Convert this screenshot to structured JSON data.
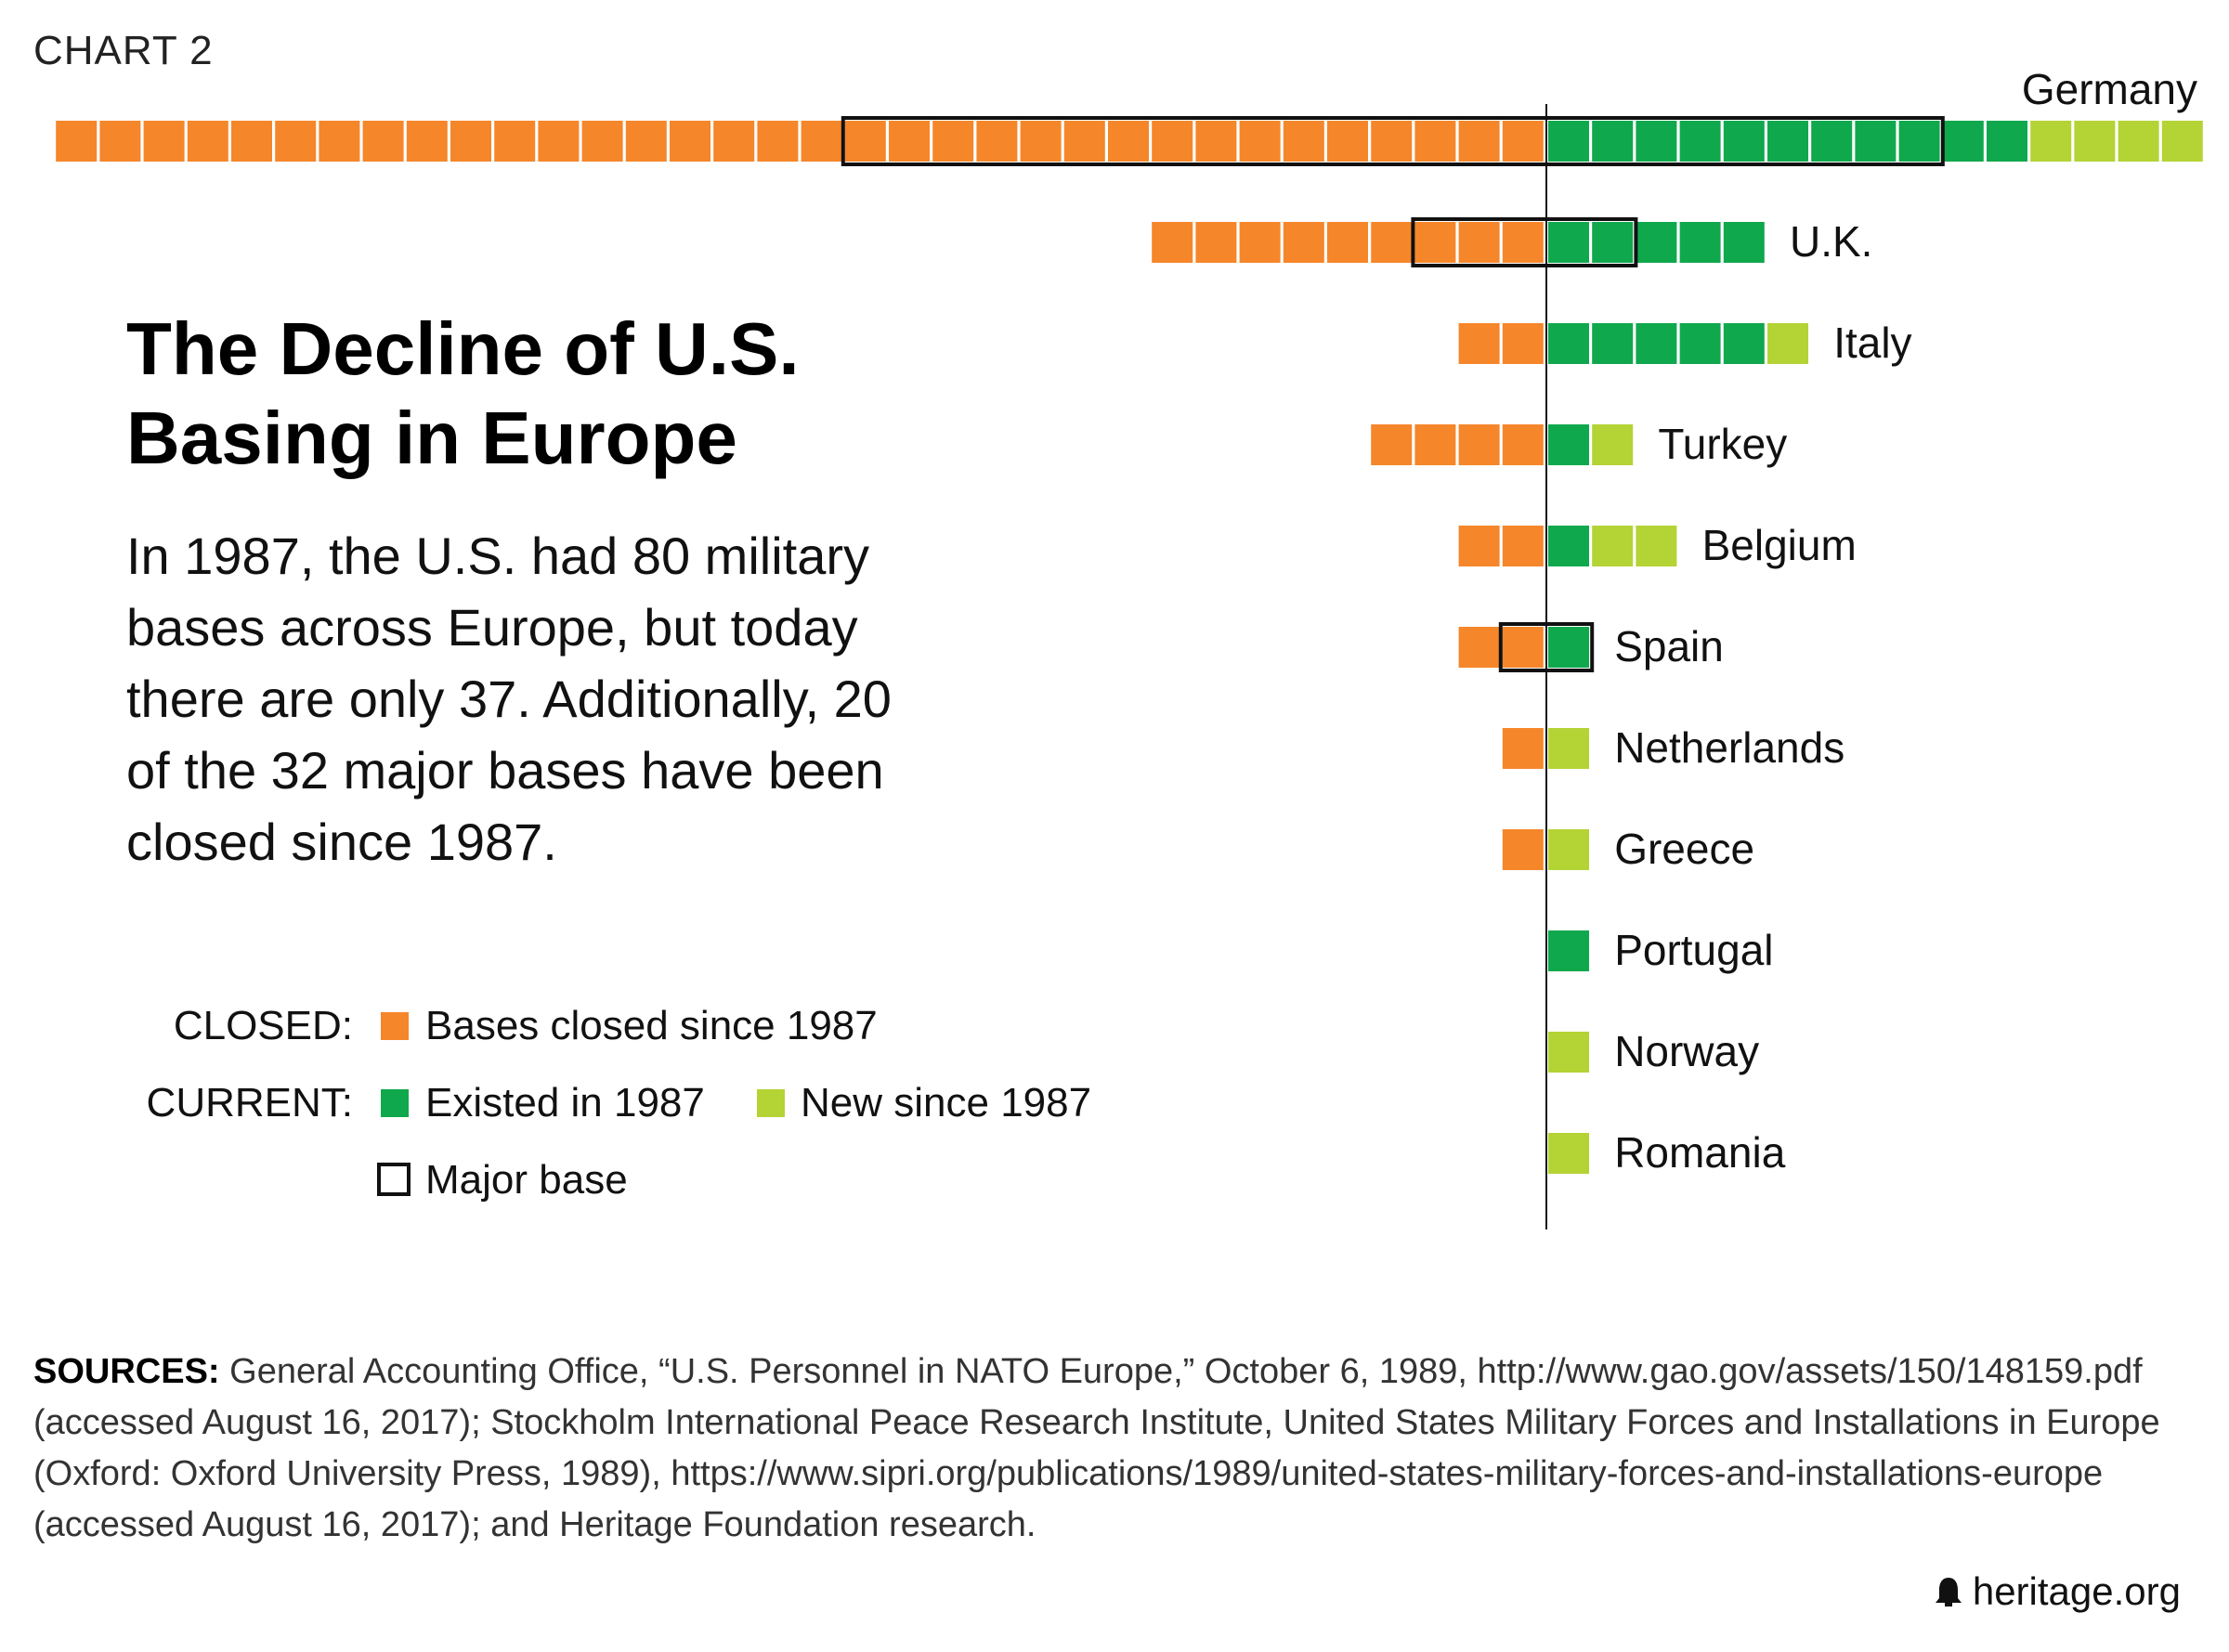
{
  "chart_label": "CHART 2",
  "title": [
    "The Decline of U.S.",
    "Basing in Europe"
  ],
  "description": "In 1987, the U.S. had 80 military bases across Europe, but today there are only 37. Additionally, 20 of the 32 major bases have been closed since 1987.",
  "legend": {
    "closed_label": "CLOSED:",
    "closed_text": "Bases closed since 1987",
    "current_label": "CURRENT:",
    "existed_text": "Existed in 1987",
    "new_text": "New since 1987",
    "major_text": "Major base"
  },
  "colors": {
    "closed": "#f5862a",
    "existed": "#10a84d",
    "new": "#b4d335",
    "outline": "#111111"
  },
  "chart_data": {
    "type": "bar",
    "title": "The Decline of U.S. Basing in Europe",
    "unit": "bases (one square per base)",
    "series": [
      {
        "name": "Bases closed since 1987",
        "key": "closed"
      },
      {
        "name": "Existed in 1987",
        "key": "existed"
      },
      {
        "name": "New since 1987",
        "key": "new"
      }
    ],
    "countries": [
      {
        "name": "Germany",
        "closed": 34,
        "existed": 11,
        "new": 4,
        "major_closed": 16,
        "major_current": 9
      },
      {
        "name": "U.K.",
        "closed": 9,
        "existed": 5,
        "new": 0,
        "major_closed": 3,
        "major_current": 2
      },
      {
        "name": "Italy",
        "closed": 2,
        "existed": 5,
        "new": 1,
        "major_closed": 0,
        "major_current": 0
      },
      {
        "name": "Turkey",
        "closed": 4,
        "existed": 1,
        "new": 1,
        "major_closed": 0,
        "major_current": 0
      },
      {
        "name": "Belgium",
        "closed": 2,
        "existed": 1,
        "new": 2,
        "major_closed": 0,
        "major_current": 0
      },
      {
        "name": "Spain",
        "closed": 2,
        "existed": 1,
        "new": 0,
        "major_closed": 1,
        "major_current": 1
      },
      {
        "name": "Netherlands",
        "closed": 1,
        "existed": 0,
        "new": 1,
        "major_closed": 0,
        "major_current": 0
      },
      {
        "name": "Greece",
        "closed": 1,
        "existed": 0,
        "new": 1,
        "major_closed": 0,
        "major_current": 0
      },
      {
        "name": "Portugal",
        "closed": 0,
        "existed": 1,
        "new": 0,
        "major_closed": 0,
        "major_current": 0
      },
      {
        "name": "Norway",
        "closed": 0,
        "existed": 0,
        "new": 1,
        "major_closed": 0,
        "major_current": 0
      },
      {
        "name": "Romania",
        "closed": 0,
        "existed": 0,
        "new": 1,
        "major_closed": 0,
        "major_current": 0
      }
    ]
  },
  "sources_label": "SOURCES:",
  "sources_text": "General Accounting Office, “U.S. Personnel in NATO Europe,” October 6, 1989, http://www.gao.gov/assets/150/148159.pdf (accessed August 16, 2017); Stockholm International Peace Research Institute, United States Military Forces and Installations in Europe (Oxford: Oxford University Press, 1989), https://www.sipri.org/publications/1989/united-states-military-forces-and-installations-europe (accessed August 16, 2017); and Heritage Foundation research.",
  "footer": {
    "logo_icon": "bell-icon",
    "site": "heritage.org"
  }
}
